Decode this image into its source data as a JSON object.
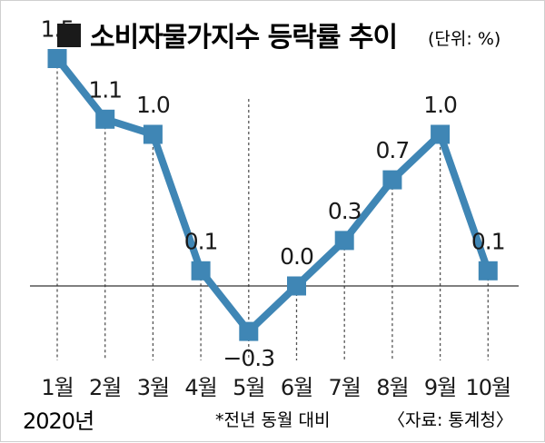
{
  "chart_data": {
    "type": "line",
    "title": "소비자물가지수 등락률 추이",
    "unit_note": "(단위: %)",
    "year_label": "2020년",
    "footnote": "*전년 동월 대비",
    "source": "〈자료: 통계청〉",
    "categories": [
      "1월",
      "2월",
      "3월",
      "4월",
      "5월",
      "6월",
      "7월",
      "8월",
      "9월",
      "10월"
    ],
    "series": [
      {
        "values": [
          1.5,
          1.1,
          1.0,
          0.1,
          -0.3,
          0.0,
          0.3,
          0.7,
          1.0,
          0.1
        ],
        "labels": [
          "1.5",
          "1.1",
          "1.0",
          "0.1",
          "−0.3",
          "0.0",
          "0.3",
          "0.7",
          "1.0",
          "0.1"
        ]
      }
    ],
    "ylim": [
      -0.5,
      1.7
    ],
    "zero_line": true,
    "vertical_guides": true,
    "colors": {
      "line": "#3f86b5",
      "marker": "#3f86b5",
      "text": "#1a1a1a",
      "guide": "#555555"
    }
  }
}
